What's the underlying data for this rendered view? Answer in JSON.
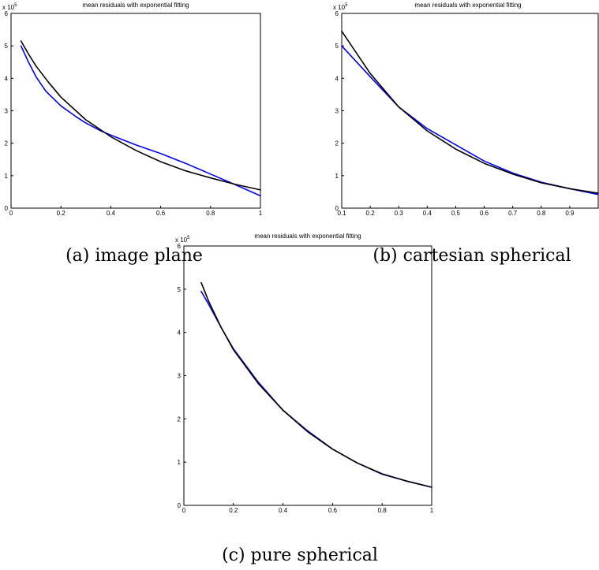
{
  "chart_data": [
    {
      "type": "line",
      "title": "mean residuals with exponential fitting",
      "caption": "(a) image plane",
      "y_exponent_base": "x 10",
      "y_exponent_power": "5",
      "xlim": [
        0,
        1
      ],
      "ylim": [
        0,
        6
      ],
      "x_ticks": [
        "0",
        "0.2",
        "0.4",
        "0.6",
        "0.8",
        "1"
      ],
      "y_ticks": [
        "0",
        "1",
        "2",
        "3",
        "4",
        "5",
        "6"
      ],
      "grid": false,
      "series": [
        {
          "color": "#0000ff",
          "x": [
            0.04,
            0.07,
            0.1,
            0.14,
            0.2,
            0.26,
            0.3,
            0.36,
            0.4,
            0.5,
            0.6,
            0.7,
            0.8,
            0.9,
            1.0
          ],
          "y": [
            5.0,
            4.5,
            4.05,
            3.6,
            3.15,
            2.82,
            2.62,
            2.38,
            2.25,
            1.95,
            1.68,
            1.38,
            1.05,
            0.72,
            0.38
          ]
        },
        {
          "color": "#000000",
          "x": [
            0.04,
            0.07,
            0.1,
            0.15,
            0.2,
            0.3,
            0.4,
            0.5,
            0.6,
            0.7,
            0.8,
            0.9,
            1.0
          ],
          "y": [
            5.15,
            4.75,
            4.38,
            3.88,
            3.42,
            2.72,
            2.2,
            1.78,
            1.43,
            1.15,
            0.93,
            0.73,
            0.56
          ]
        }
      ]
    },
    {
      "type": "line",
      "title": "mean residuals with exponential fitting",
      "caption": "(b) cartesian spherical",
      "y_exponent_base": "x 10",
      "y_exponent_power": "5",
      "xlim": [
        0.1,
        1.0
      ],
      "ylim": [
        0,
        6
      ],
      "x_ticks": [
        "0.1",
        "0.2",
        "0.3",
        "0.4",
        "0.5",
        "0.6",
        "0.7",
        "0.8",
        "0.9"
      ],
      "y_ticks": [
        "0",
        "1",
        "2",
        "3",
        "4",
        "5",
        "6"
      ],
      "grid": false,
      "series": [
        {
          "color": "#0000ff",
          "x": [
            0.1,
            0.2,
            0.3,
            0.4,
            0.5,
            0.6,
            0.7,
            0.8,
            0.9,
            1.0
          ],
          "y": [
            5.0,
            4.05,
            3.12,
            2.45,
            1.95,
            1.45,
            1.08,
            0.8,
            0.6,
            0.42
          ]
        },
        {
          "color": "#000000",
          "x": [
            0.1,
            0.2,
            0.3,
            0.4,
            0.5,
            0.6,
            0.7,
            0.8,
            0.9,
            1.0
          ],
          "y": [
            5.45,
            4.15,
            3.12,
            2.38,
            1.82,
            1.38,
            1.05,
            0.78,
            0.6,
            0.46
          ]
        }
      ]
    },
    {
      "type": "line",
      "title": "mean residuals with exponential fitting",
      "caption": "(c) pure spherical",
      "y_exponent_base": "x 10",
      "y_exponent_power": "5",
      "xlim": [
        0,
        1
      ],
      "ylim": [
        0,
        6
      ],
      "x_ticks": [
        "0",
        "0.2",
        "0.4",
        "0.6",
        "0.8",
        "1"
      ],
      "y_ticks": [
        "0",
        "1",
        "2",
        "3",
        "4",
        "5",
        "6"
      ],
      "grid": false,
      "series": [
        {
          "color": "#0000ff",
          "x": [
            0.07,
            0.1,
            0.15,
            0.2,
            0.3,
            0.4,
            0.5,
            0.6,
            0.7,
            0.8,
            0.9,
            1.0
          ],
          "y": [
            4.95,
            4.65,
            4.12,
            3.62,
            2.85,
            2.2,
            1.72,
            1.3,
            0.98,
            0.72,
            0.56,
            0.42
          ]
        },
        {
          "color": "#000000",
          "x": [
            0.07,
            0.1,
            0.15,
            0.2,
            0.3,
            0.4,
            0.5,
            0.6,
            0.7,
            0.8,
            0.9,
            1.0
          ],
          "y": [
            5.15,
            4.72,
            4.12,
            3.6,
            2.82,
            2.2,
            1.7,
            1.3,
            0.98,
            0.73,
            0.56,
            0.42
          ]
        }
      ]
    }
  ]
}
